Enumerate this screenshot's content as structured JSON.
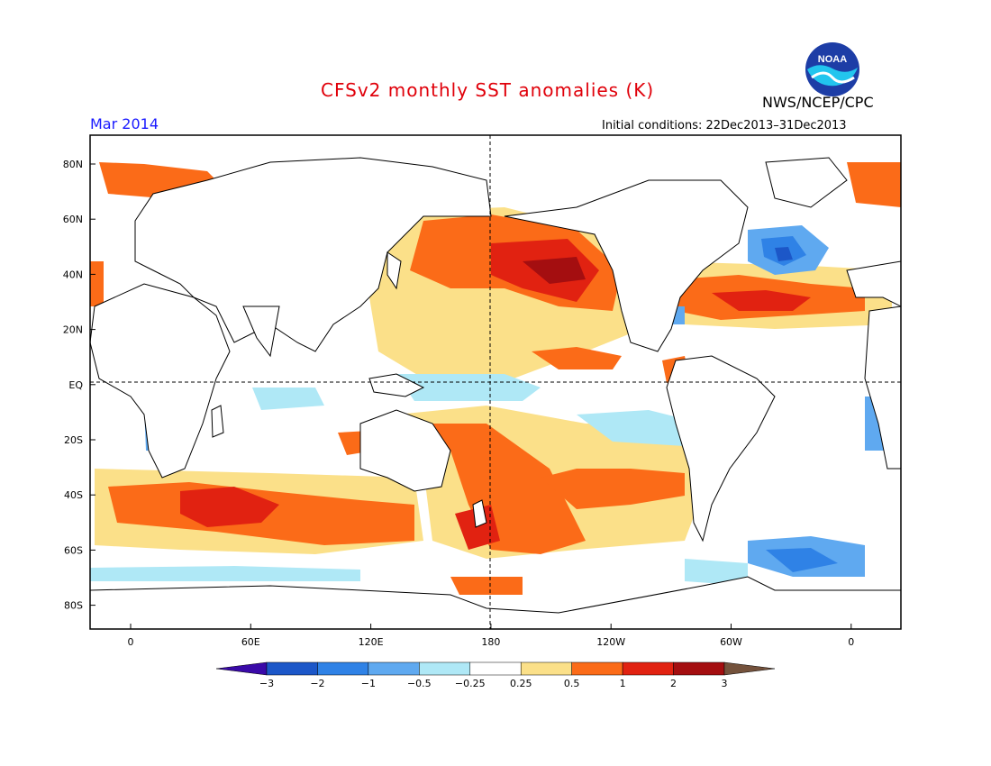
{
  "header": {
    "title": "CFSv2 monthly SST anomalies (K)",
    "org": "NWS/NCEP/CPC",
    "month": "Mar 2014",
    "initial_conditions": "Initial conditions: 22Dec2013–31Dec2013",
    "logo_text": "NOAA"
  },
  "map": {
    "lat_labels": [
      "80N",
      "60N",
      "40N",
      "20N",
      "EQ",
      "20S",
      "40S",
      "60S",
      "80S"
    ],
    "lon_labels": [
      "0",
      "60E",
      "120E",
      "180",
      "120W",
      "60W",
      "0"
    ],
    "colors": {
      "land": "#ffffff",
      "coast": "#000000",
      "zero": "#ffffff"
    }
  },
  "colorbar": {
    "tick_labels": [
      "−3",
      "−2",
      "−1",
      "−0.5",
      "−0.25",
      "0.25",
      "0.5",
      "1",
      "2",
      "3"
    ],
    "colors": [
      "#3a0aa8",
      "#1c57c8",
      "#2f82e6",
      "#5fa9f0",
      "#afe8f6",
      "#ffffff",
      "#fbe089",
      "#fb6b18",
      "#e12211",
      "#a40e10",
      "#74523c"
    ]
  }
}
